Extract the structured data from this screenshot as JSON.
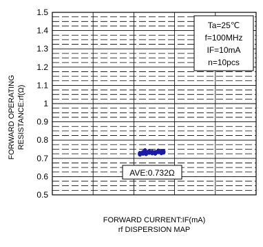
{
  "chart_data": {
    "type": "scatter",
    "title": "",
    "ylabel_lines": [
      "FORWARD OPERATING",
      "RESISTANCE:rf(Ω)"
    ],
    "xlabel": "FORWARD CURRENT:IF(mA)",
    "caption": "rf DISPERSION MAP",
    "ylim": [
      0.5,
      1.5
    ],
    "yticks": [
      "1.5",
      "1.4",
      "1.3",
      "1.2",
      "1.1",
      "1",
      "0.9",
      "0.8",
      "0.7",
      "0.6",
      "0.5"
    ],
    "xticks": [],
    "grid": true,
    "conditions": [
      "Ta=25℃",
      "f=100MHz",
      "IF=10mA",
      "n=10pcs"
    ],
    "average_label": "AVE:0.732Ω",
    "series": [
      {
        "color": "#1a1aa6",
        "points": [
          {
            "x": 0.43,
            "y": 0.725
          },
          {
            "x": 0.445,
            "y": 0.73
          },
          {
            "x": 0.46,
            "y": 0.728
          },
          {
            "x": 0.475,
            "y": 0.735
          },
          {
            "x": 0.49,
            "y": 0.732
          },
          {
            "x": 0.505,
            "y": 0.73
          },
          {
            "x": 0.52,
            "y": 0.738
          },
          {
            "x": 0.535,
            "y": 0.733
          },
          {
            "x": 0.545,
            "y": 0.736
          },
          {
            "x": 0.455,
            "y": 0.74
          }
        ]
      }
    ]
  }
}
